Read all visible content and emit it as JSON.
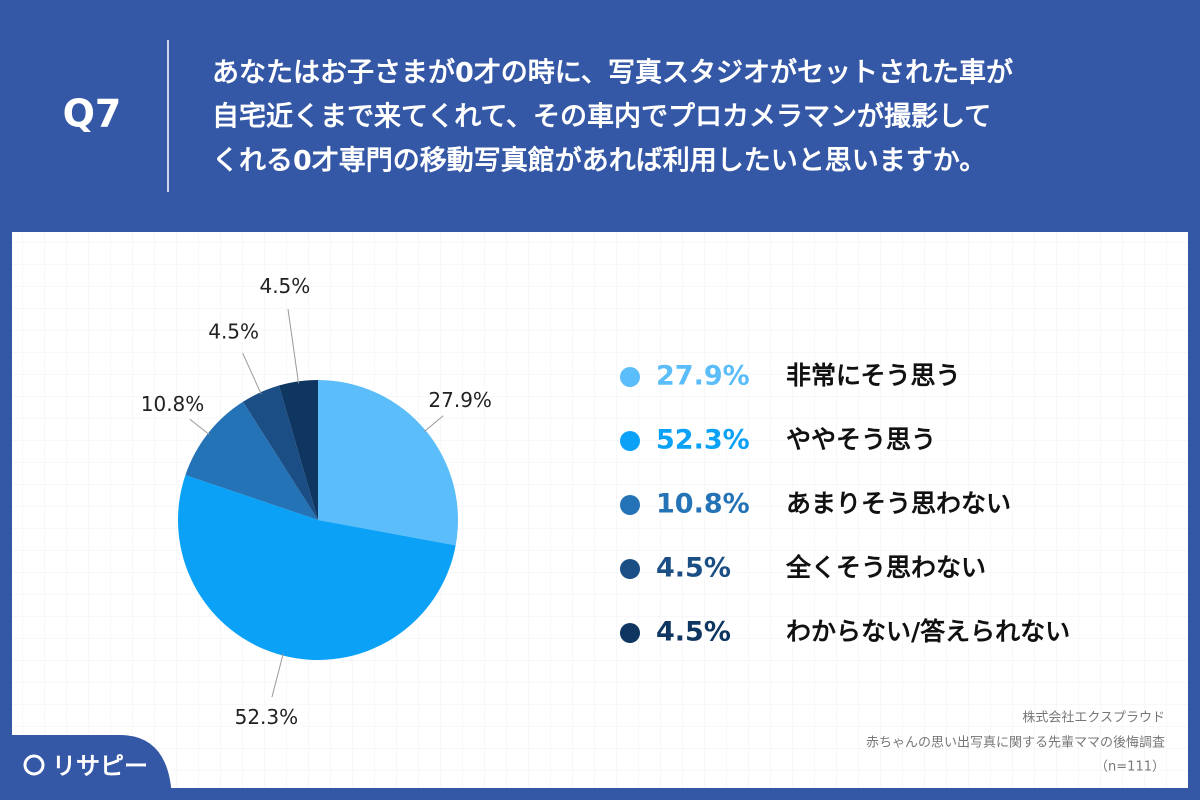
{
  "header": {
    "label": "Q7",
    "question": [
      "あなたはお子さまが0才の時に、写真スタジオがセットされた車が",
      "自宅近くまで来てくれて、その車内でプロカメラマンが撮影して",
      "くれる0才専門の移動写真館があれば利用したいと思いますか。"
    ]
  },
  "chart_data": {
    "type": "pie",
    "categories": [
      "非常にそう思う",
      "ややそう思う",
      "あまりそう思わない",
      "全くそう思わない",
      "わからない/答えられない"
    ],
    "values": [
      27.9,
      52.3,
      10.8,
      4.5,
      4.5
    ],
    "value_labels": [
      "27.9%",
      "52.3%",
      "10.8%",
      "4.5%",
      "4.5%"
    ],
    "colors": [
      "#5bbdf9",
      "#0aa1f6",
      "#2373b6",
      "#1b4e84",
      "#0f3561"
    ]
  },
  "footer": {
    "source": [
      "株式会社エクスプラウド",
      "赤ちゃんの思い出写真に関する先輩ママの後悔調査",
      "（n=111）"
    ],
    "logo": "リサピー"
  }
}
